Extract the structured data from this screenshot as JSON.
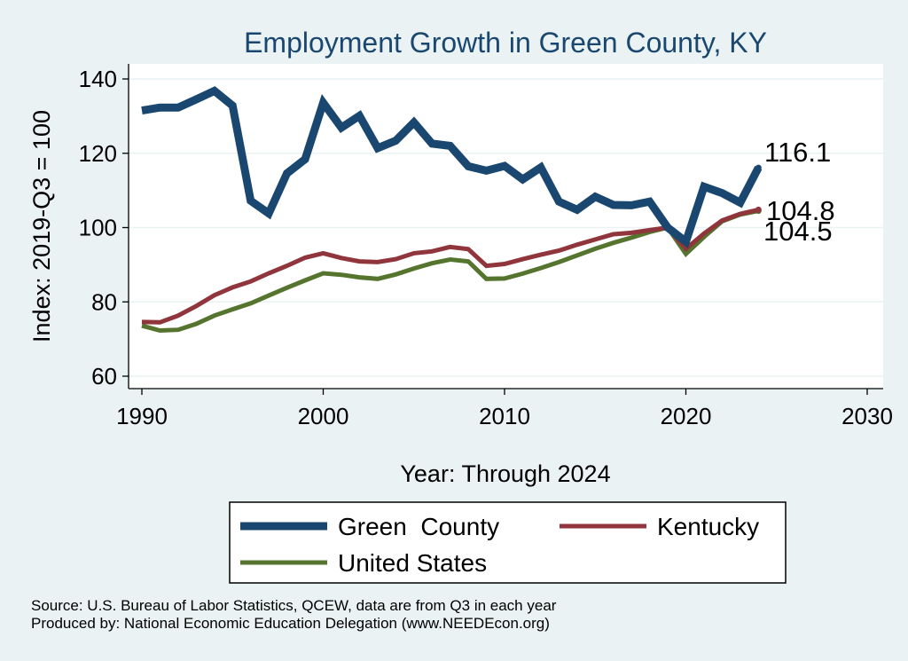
{
  "chart_data": {
    "type": "line",
    "title": "Employment Growth in Green County, KY",
    "xlabel": "Year: Through 2024",
    "ylabel": "Index: 2019-Q3 = 100",
    "xlim": [
      1990,
      2030
    ],
    "ylim": [
      55,
      145
    ],
    "xticks": [
      1990,
      2000,
      2010,
      2020,
      2030
    ],
    "yticks": [
      60,
      80,
      100,
      120,
      140
    ],
    "grid": true,
    "legend_position": "bottom",
    "x": [
      1990,
      1991,
      1992,
      1993,
      1994,
      1995,
      1996,
      1997,
      1998,
      1999,
      2000,
      2001,
      2002,
      2003,
      2004,
      2005,
      2006,
      2007,
      2008,
      2009,
      2010,
      2011,
      2012,
      2013,
      2014,
      2015,
      2016,
      2017,
      2018,
      2019,
      2020,
      2021,
      2022,
      2023,
      2024
    ],
    "series": [
      {
        "name": "Green  County",
        "color": "#1a476f",
        "width": 9,
        "values": [
          131.5,
          132.3,
          132.3,
          134.5,
          136.8,
          132.8,
          107.2,
          103.8,
          114.6,
          118.4,
          133.6,
          126.9,
          130.1,
          121.4,
          123.4,
          128.3,
          122.6,
          122.0,
          116.5,
          115.3,
          116.6,
          113.0,
          116.2,
          107.0,
          104.8,
          108.3,
          106.1,
          106.0,
          107.0,
          100.0,
          96.2,
          111.0,
          109.3,
          106.7,
          116.1
        ],
        "end_label": "116.1"
      },
      {
        "name": "Kentucky",
        "color": "#90353b",
        "width": 5,
        "values": [
          74.6,
          74.5,
          76.3,
          78.9,
          81.8,
          83.9,
          85.5,
          87.7,
          89.7,
          91.9,
          93.1,
          91.8,
          90.9,
          90.7,
          91.5,
          93.1,
          93.6,
          94.8,
          94.2,
          89.7,
          90.2,
          91.5,
          92.7,
          93.8,
          95.4,
          96.8,
          98.2,
          98.6,
          99.3,
          100.0,
          94.3,
          98.4,
          101.9,
          103.7,
          104.8
        ],
        "end_label": "104.8"
      },
      {
        "name": "United States",
        "color": "#55752f",
        "width": 5,
        "values": [
          73.6,
          72.3,
          72.5,
          74.1,
          76.3,
          78.0,
          79.6,
          81.7,
          83.8,
          85.8,
          87.7,
          87.3,
          86.6,
          86.2,
          87.4,
          89.0,
          90.4,
          91.4,
          90.9,
          86.2,
          86.3,
          87.6,
          89.1,
          90.7,
          92.5,
          94.3,
          95.9,
          97.3,
          98.8,
          100.0,
          92.9,
          97.5,
          101.7,
          103.5,
          104.5
        ],
        "end_label": "104.5"
      }
    ]
  },
  "footer": {
    "source": "Source: U.S. Bureau of Labor Statistics, QCEW, data are from Q3 in each year",
    "produced": "Produced by: National Economic Education Delegation (www.NEEDEcon.org)"
  }
}
